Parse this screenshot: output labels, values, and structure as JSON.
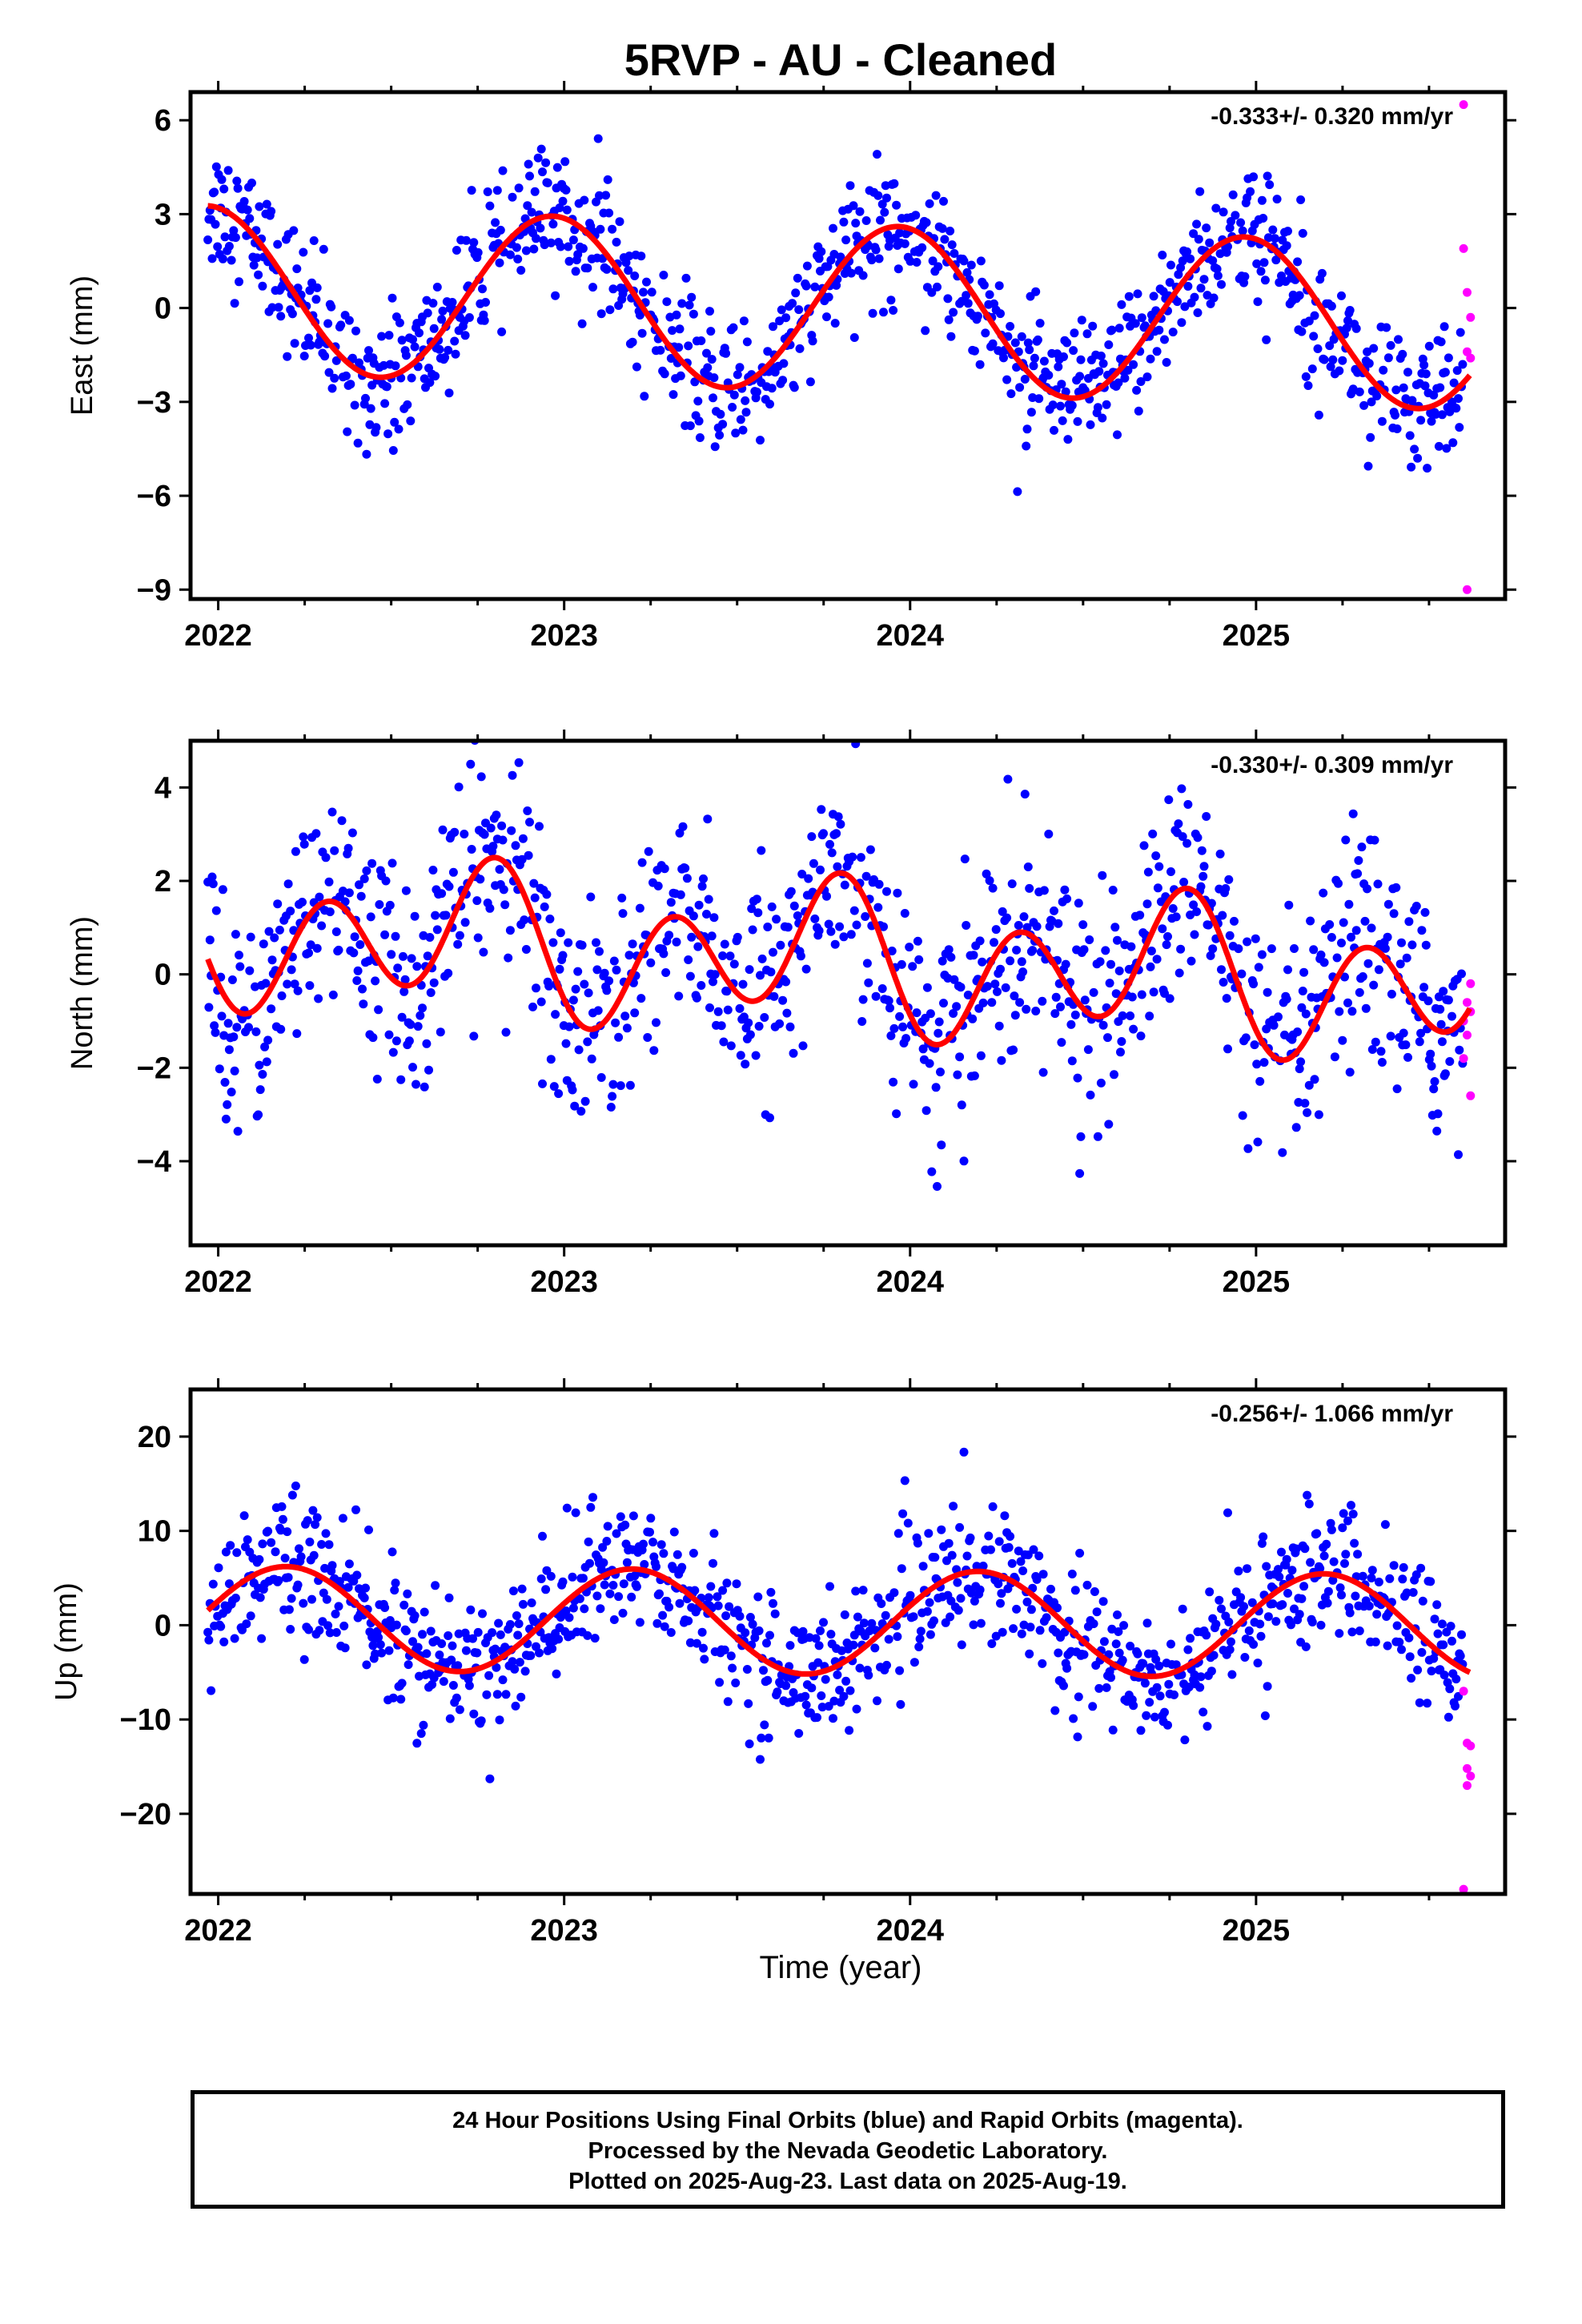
{
  "title": "5RVP  - AU - Cleaned",
  "xlabel": "Time (year)",
  "footer": {
    "line1": "24 Hour Positions Using Final Orbits (blue) and Rapid Orbits (magenta).",
    "line2": "Processed by the Nevada Geodetic Laboratory.",
    "line3": "Plotted on 2025-Aug-23. Last data on 2025-Aug-19."
  },
  "colors": {
    "final_orbits": "#0000ff",
    "rapid_orbits": "#ff00ff",
    "model": "#ff0000"
  },
  "chart_data": [
    {
      "type": "scatter",
      "ylabel": "East (mm)",
      "rate_label": "-0.333+/- 0.320 mm/yr",
      "xlim": [
        2021.92,
        2025.72
      ],
      "ylim": [
        -9.3,
        6.9
      ],
      "xticks": [
        2022,
        2023,
        2024,
        2025
      ],
      "yticks": [
        6,
        3,
        0,
        -3,
        -6,
        -9
      ],
      "model": {
        "offset": 0.0,
        "rate": -0.333,
        "annual_cos": 2.6,
        "annual_sin": -0.55,
        "semiannual_cos": 0.0,
        "semiannual_sin": 0.0,
        "end": 2025.62
      },
      "scatter_noise": 1.05,
      "rapid_points": [
        [
          2025.6,
          6.5
        ],
        [
          2025.6,
          1.9
        ],
        [
          2025.61,
          0.5
        ],
        [
          2025.62,
          -0.3
        ],
        [
          2025.61,
          -1.4
        ],
        [
          2025.62,
          -1.6
        ],
        [
          2025.61,
          -9.0
        ]
      ]
    },
    {
      "type": "scatter",
      "ylabel": "North (mm)",
      "rate_label": "-0.330+/- 0.309 mm/yr",
      "xlim": [
        2021.92,
        2025.72
      ],
      "ylim": [
        -5.8,
        5.0
      ],
      "xticks": [
        2022,
        2023,
        2024,
        2025
      ],
      "yticks": [
        4,
        2,
        0,
        -2,
        -4
      ],
      "model": {
        "offset": 0.3,
        "rate": -0.33,
        "annual_cos": -0.15,
        "annual_sin": -0.65,
        "semiannual_cos": -0.95,
        "semiannual_sin": -0.9,
        "end": 2025.62
      },
      "scatter_noise": 1.15,
      "rapid_points": [
        [
          2025.62,
          -0.2
        ],
        [
          2025.61,
          -0.6
        ],
        [
          2025.62,
          -0.8
        ],
        [
          2025.6,
          -1.0
        ],
        [
          2025.61,
          -1.3
        ],
        [
          2025.6,
          -1.8
        ],
        [
          2025.62,
          -2.6
        ]
      ]
    },
    {
      "type": "scatter",
      "ylabel": "Up (mm)",
      "rate_label": "-0.256+/- 1.066 mm/yr",
      "xlim": [
        2021.92,
        2025.72
      ],
      "ylim": [
        -28.5,
        25
      ],
      "xticks": [
        2022,
        2023,
        2024,
        2025
      ],
      "yticks": [
        20,
        10,
        0,
        -10,
        -20
      ],
      "model": {
        "offset": 0.3,
        "rate": -0.256,
        "annual_cos": 1.8,
        "annual_sin": 5.2,
        "semiannual_cos": 0.0,
        "semiannual_sin": 0.0,
        "end": 2025.62
      },
      "scatter_noise": 3.6,
      "rapid_points": [
        [
          2025.6,
          -7.0
        ],
        [
          2025.61,
          -12.5
        ],
        [
          2025.62,
          -12.8
        ],
        [
          2025.61,
          -15.2
        ],
        [
          2025.62,
          -16.0
        ],
        [
          2025.61,
          -17.0
        ],
        [
          2025.6,
          -28.0
        ]
      ]
    }
  ]
}
